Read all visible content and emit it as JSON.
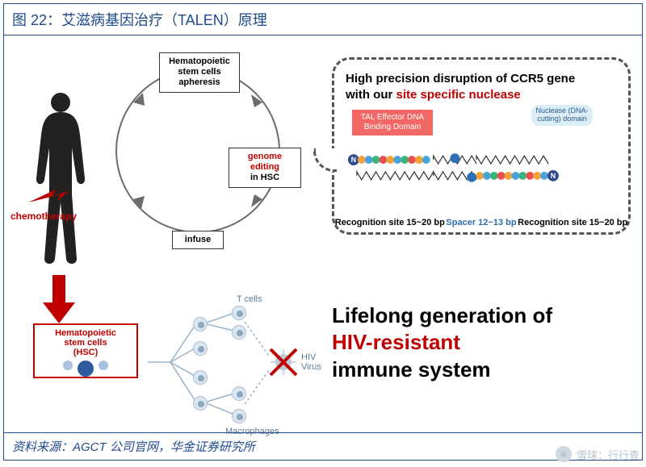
{
  "title": "图 22：艾滋病基因治疗（TALEN）原理",
  "source": "资料来源：AGCT 公司官网，华金证券研究所",
  "colors": {
    "frame": "#1e4a8c",
    "accent_red": "#c00000",
    "gray": "#6b6b6b",
    "cell_fill": "#dce6ef",
    "cell_border": "#a9bfd4",
    "cell_nucleus": "#8aa8c2",
    "tal_box": "#f06766",
    "nuclease_box": "#dbeef7",
    "spacer_blue": "#2c6fb5"
  },
  "cycle": {
    "top": "Hematopoietic\nstem cells\napheresis",
    "right_prefix": "genome editing",
    "right_suffix": "in  HSC",
    "bottom": "infuse"
  },
  "chemo": "chemotherapy",
  "bubble": {
    "line1": "High precision disruption of CCR5 gene",
    "line2_prefix": "with our ",
    "line2_red": "site specific nuclease",
    "tal_label": "TAL Effector DNA Binding Domain",
    "nuclease_label": "Nuclease (DNA-cutting) domain",
    "recognition_left": "Recognition site 15~20 bp",
    "spacer": "Spacer 12~13 bp",
    "recognition_right": "Recognition site 15~20 bp",
    "bead_colors": [
      "#f2a23a",
      "#4aa3d8",
      "#3cb37a",
      "#e94f4f",
      "#f2a23a",
      "#4aa3d8",
      "#3cb37a",
      "#e94f4f",
      "#f2a23a",
      "#4aa3d8"
    ],
    "spacer_len": 6,
    "n_circle": "N",
    "n_circle_color": "#2e4a8f"
  },
  "hsc_box": {
    "line1": "Hematopoietic",
    "line2": "stem cells",
    "line3": "(HSC)",
    "dot_color": "#2e5a9e"
  },
  "tree": {
    "tcells": "T cells",
    "macrophages": "Macrophages",
    "hiv": "HIV Virus"
  },
  "message": {
    "l1": "Lifelong generation of",
    "l2": "HIV-resistant",
    "l3": "immune system"
  },
  "watermark": "雪球：行行查"
}
